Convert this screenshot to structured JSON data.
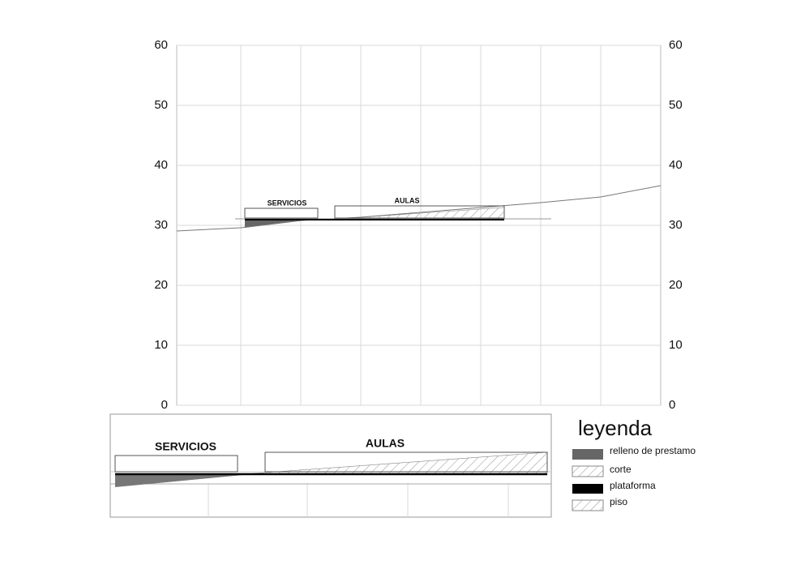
{
  "section": {
    "ticks": [
      0,
      10,
      20,
      30,
      40,
      50,
      60
    ],
    "labels": {
      "servicios": "SERVICIOS",
      "aulas": "AULAS"
    }
  },
  "detail": {
    "labels": {
      "servicios": "SERVICIOS",
      "aulas": "AULAS"
    }
  },
  "legend": {
    "title": "leyenda",
    "items": [
      "relleno de prestamo",
      "corte",
      "plataforma",
      "piso"
    ]
  }
}
